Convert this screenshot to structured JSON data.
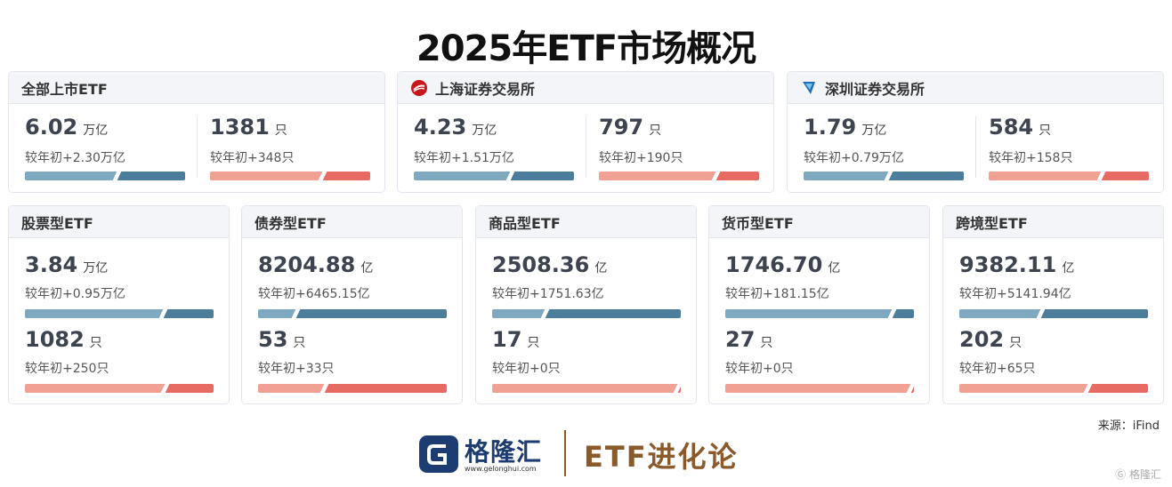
{
  "title": "2025年ETF市场概况",
  "colors": {
    "blue_light": "#7fa9c0",
    "blue_dark": "#4c7e9b",
    "red_light": "#f0a194",
    "red_dark": "#e76b63",
    "brand_brown": "#8a5a2b"
  },
  "exchanges": [
    {
      "name": "全部上市ETF",
      "logo": "none",
      "scale": {
        "value": "6.02",
        "unit": "万亿",
        "change": "较年初+2.30万亿",
        "split": 0.57
      },
      "count": {
        "value": "1381",
        "unit": "只",
        "change": "较年初+348只",
        "split": 0.7
      }
    },
    {
      "name": "上海证券交易所",
      "logo": "sse-logo-icon",
      "scale": {
        "value": "4.23",
        "unit": "万亿",
        "change": "较年初+1.51万亿",
        "split": 0.6
      },
      "count": {
        "value": "797",
        "unit": "只",
        "change": "较年初+190只",
        "split": 0.73
      }
    },
    {
      "name": "深圳证券交易所",
      "logo": "szse-logo-icon",
      "scale": {
        "value": "1.79",
        "unit": "万亿",
        "change": "较年初+0.79万亿",
        "split": 0.53
      },
      "count": {
        "value": "584",
        "unit": "只",
        "change": "较年初+158只",
        "split": 0.7
      }
    }
  ],
  "categories": [
    {
      "name": "股票型ETF",
      "scale": {
        "value": "3.84",
        "unit": "万亿",
        "change": "较年初+0.95万亿",
        "split": 0.73
      },
      "count": {
        "value": "1082",
        "unit": "只",
        "change": "较年初+250只",
        "split": 0.74
      }
    },
    {
      "name": "债券型ETF",
      "scale": {
        "value": "8204.88",
        "unit": "亿",
        "change": "较年初+6465.15亿",
        "split": 0.2
      },
      "count": {
        "value": "53",
        "unit": "只",
        "change": "较年初+33只",
        "split": 0.35
      }
    },
    {
      "name": "商品型ETF",
      "scale": {
        "value": "2508.36",
        "unit": "亿",
        "change": "较年初+1751.63亿",
        "split": 0.28
      },
      "count": {
        "value": "17",
        "unit": "只",
        "change": "较年初+0只",
        "split": 0.98
      }
    },
    {
      "name": "货币型ETF",
      "scale": {
        "value": "1746.70",
        "unit": "亿",
        "change": "较年初+181.15亿",
        "split": 0.88
      },
      "count": {
        "value": "27",
        "unit": "只",
        "change": "较年初+0只",
        "split": 0.98
      }
    },
    {
      "name": "跨境型ETF",
      "scale": {
        "value": "9382.11",
        "unit": "亿",
        "change": "较年初+5141.94亿",
        "split": 0.43
      },
      "count": {
        "value": "202",
        "unit": "只",
        "change": "较年初+65只",
        "split": 0.68
      }
    }
  ],
  "source": "来源：iFind",
  "footer": {
    "brand_name": "格隆汇",
    "brand_url": "www.gelonghui.com",
    "column_name": "ETF进化论"
  },
  "watermark": "格隆汇"
}
